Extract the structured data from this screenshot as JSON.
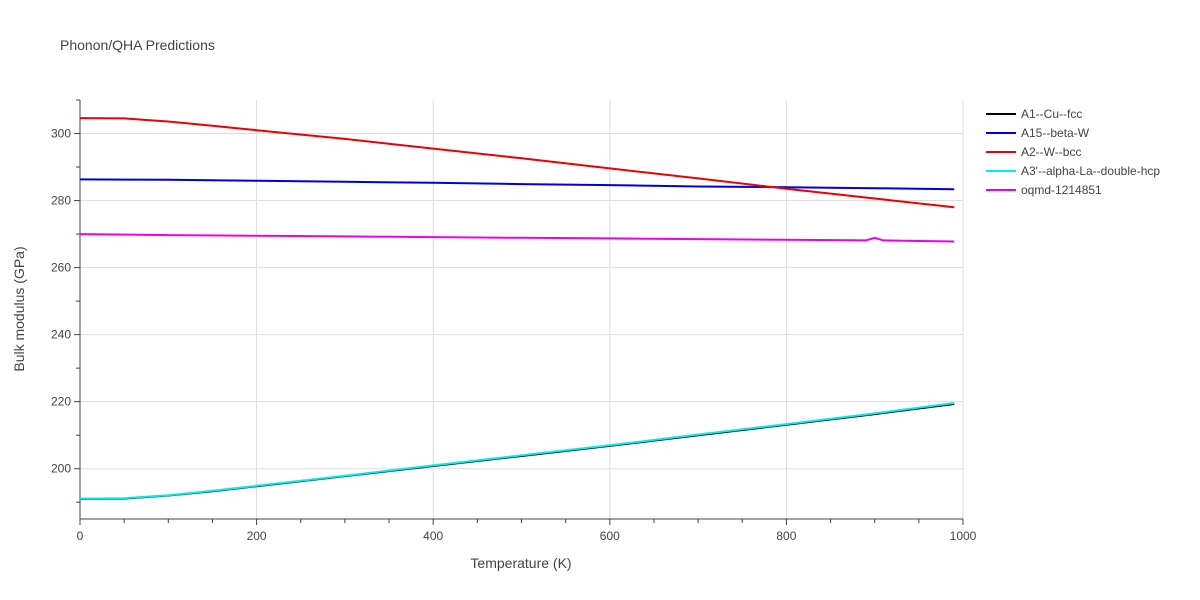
{
  "chart_data": {
    "type": "line",
    "title": "Phonon/QHA Predictions",
    "xlabel": "Temperature (K)",
    "ylabel": "Bulk modulus (GPa)",
    "xlim": [
      0,
      1000
    ],
    "ylim": [
      185,
      310
    ],
    "xticks": [
      0,
      200,
      400,
      600,
      800,
      1000
    ],
    "yticks": [
      200,
      220,
      240,
      260,
      280,
      300
    ],
    "grid": true,
    "legend_position": "top-right",
    "series": [
      {
        "name": "A1--Cu--fcc",
        "color": "#000000",
        "x": [
          0,
          50,
          100,
          150,
          200,
          300,
          400,
          500,
          600,
          700,
          800,
          900,
          990
        ],
        "y": [
          191.0,
          191.1,
          192.0,
          193.3,
          194.8,
          197.8,
          200.8,
          203.8,
          206.8,
          210.0,
          213.1,
          216.3,
          219.3
        ]
      },
      {
        "name": "A15--beta-W",
        "color": "#0000dd",
        "x": [
          0,
          100,
          200,
          300,
          400,
          500,
          600,
          700,
          800,
          900,
          990
        ],
        "y": [
          286.3,
          286.2,
          285.9,
          285.6,
          285.3,
          284.9,
          284.6,
          284.2,
          284.0,
          283.7,
          283.4
        ]
      },
      {
        "name": "A2--W--bcc",
        "color": "#ee0000",
        "x": [
          0,
          50,
          100,
          150,
          200,
          300,
          400,
          500,
          600,
          700,
          800,
          900,
          990
        ],
        "y": [
          304.6,
          304.5,
          303.6,
          302.3,
          301.0,
          298.4,
          295.5,
          292.6,
          289.6,
          286.6,
          283.5,
          280.6,
          278.0
        ]
      },
      {
        "name": "A3'--alpha-La--double-hcp",
        "color": "#00eeee",
        "x": [
          0,
          50,
          100,
          150,
          200,
          300,
          400,
          500,
          600,
          700,
          800,
          900,
          990
        ],
        "y": [
          191.1,
          191.2,
          192.1,
          193.4,
          194.9,
          197.9,
          201.0,
          204.0,
          207.0,
          210.2,
          213.3,
          216.5,
          219.6
        ]
      },
      {
        "name": "oqmd-1214851",
        "color": "#ee00ee",
        "x": [
          0,
          100,
          200,
          300,
          400,
          500,
          600,
          700,
          800,
          890,
          900,
          910,
          990
        ],
        "y": [
          270.0,
          269.7,
          269.5,
          269.3,
          269.1,
          268.9,
          268.7,
          268.5,
          268.3,
          268.1,
          268.9,
          268.1,
          267.8
        ]
      }
    ]
  }
}
